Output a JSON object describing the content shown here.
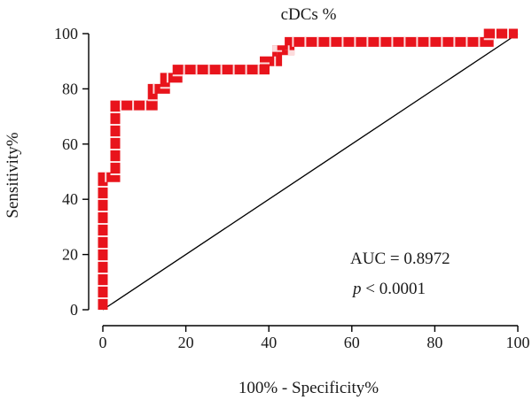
{
  "chart_data": {
    "type": "line",
    "title": "cDCs %",
    "xlabel": "100% - Specificity%",
    "ylabel": "Sensitivity%",
    "xlim": [
      0,
      100
    ],
    "ylim": [
      0,
      100
    ],
    "xticks": [
      "0",
      "20",
      "40",
      "60",
      "80",
      "100"
    ],
    "yticks": [
      "0",
      "20",
      "40",
      "60",
      "80",
      "100"
    ],
    "grid": false,
    "annotations": {
      "auc": "AUC = 0.8972",
      "p_symbol": "p",
      "p_rest": " < 0.0001"
    },
    "series": [
      {
        "color": "#e8141c",
        "style": "step",
        "x": [
          0,
          0,
          3,
          3,
          6,
          6,
          9,
          9,
          12,
          12,
          15,
          15,
          18,
          18,
          21,
          21,
          24,
          24,
          27,
          27,
          30,
          30,
          33,
          33,
          36,
          36,
          39,
          39,
          42,
          42,
          45,
          45,
          48,
          48,
          51,
          51,
          54,
          54,
          57,
          57,
          60,
          60,
          63,
          63,
          66,
          66,
          69,
          69,
          72,
          72,
          75,
          75,
          78,
          78,
          81,
          81,
          84,
          84,
          87,
          87,
          90,
          90,
          93,
          93,
          96,
          96,
          100
        ],
        "y": [
          0,
          48,
          48,
          74,
          74,
          74,
          74,
          74,
          74,
          80,
          80,
          84,
          84,
          87,
          87,
          87,
          87,
          87,
          87,
          87,
          87,
          87,
          87,
          87,
          87,
          87,
          87,
          90,
          90,
          94,
          94,
          97,
          97,
          97,
          97,
          97,
          97,
          97,
          97,
          97,
          97,
          97,
          97,
          97,
          97,
          97,
          97,
          97,
          97,
          97,
          97,
          97,
          97,
          97,
          97,
          97,
          97,
          97,
          97,
          97,
          97,
          97,
          97,
          100,
          100,
          100,
          100
        ]
      },
      {
        "color": "#000000",
        "style": "diagonal",
        "x": [
          0,
          100
        ],
        "y": [
          0,
          100
        ]
      }
    ]
  }
}
